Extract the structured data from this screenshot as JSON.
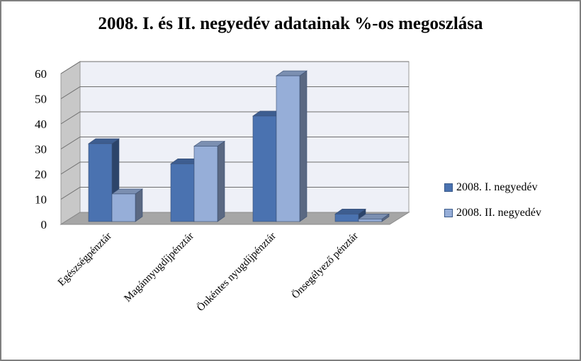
{
  "chart_data": {
    "type": "bar",
    "title": "2008. I. és II. negyedév adatainak %-os megoszlása",
    "categories": [
      "Egészségpénztár",
      "Magánnyugdíjpénztár",
      "Önkéntes nyugdíjpénztár",
      "Önsegélyező pénztár"
    ],
    "series": [
      {
        "name": "2008. I. negyedév",
        "values": [
          31,
          23,
          42,
          3
        ],
        "color": "#4a72b0"
      },
      {
        "name": "2008. II. negyedév",
        "values": [
          11,
          30,
          58,
          1
        ],
        "color": "#96aed8"
      }
    ],
    "y_ticks": [
      "0",
      "10",
      "20",
      "30",
      "40",
      "50",
      "60"
    ],
    "ylim": [
      0,
      60
    ],
    "grid": true,
    "three_d": true,
    "legend_position": "right"
  }
}
